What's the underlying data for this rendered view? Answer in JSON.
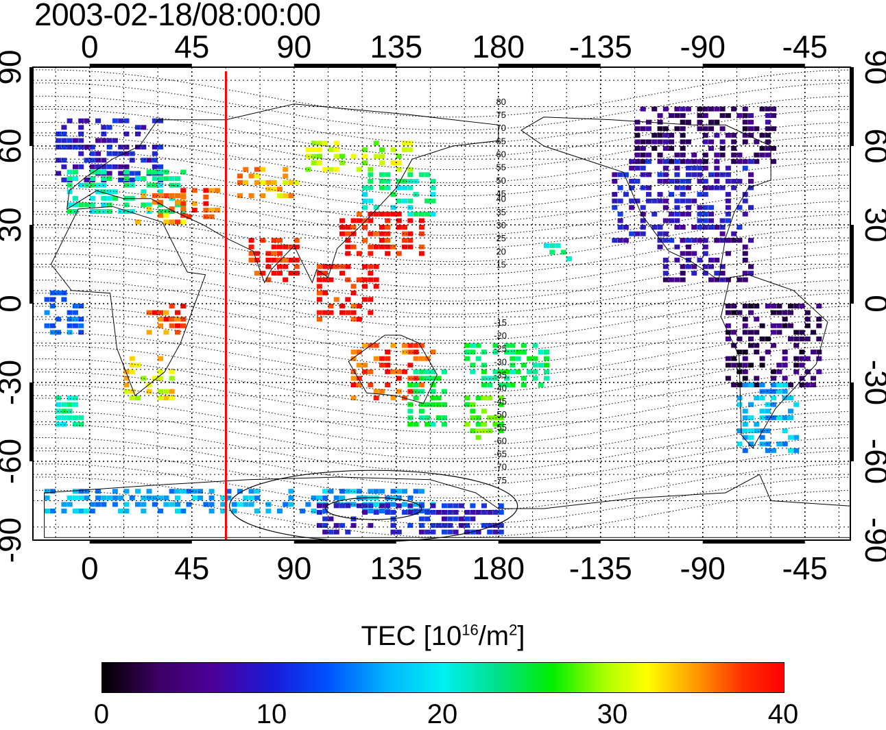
{
  "title": {
    "timestamp": "2003-02-18/08:00:00"
  },
  "axes": {
    "x_tick_labels": [
      "0",
      "45",
      "90",
      "135",
      "180",
      "-135",
      "-90",
      "-45"
    ],
    "y_tick_labels": [
      "90",
      "60",
      "30",
      "0",
      "-30",
      "-60",
      "-90"
    ],
    "y_tick_values": [
      90,
      60,
      30,
      0,
      -30,
      -60,
      -90
    ],
    "longitude_range": [
      -25,
      335
    ],
    "latitude_range": [
      -90,
      90
    ]
  },
  "contour_labels": {
    "north": [
      "80",
      "75",
      "70",
      "65",
      "60",
      "55",
      "50",
      "45",
      "40",
      "35",
      "30",
      "25",
      "20",
      "15"
    ],
    "south": [
      "15",
      "20",
      "25",
      "30",
      "35",
      "40",
      "45",
      "50",
      "55",
      "60",
      "65",
      "70",
      "75"
    ]
  },
  "marker_line": {
    "longitude": 60,
    "color": "#ff0000"
  },
  "colorbar": {
    "title_prefix": "TEC  [10",
    "title_exp1": "16",
    "title_mid": "/m",
    "title_exp2": "2",
    "title_suffix": "]",
    "ticks": [
      "0",
      "10",
      "20",
      "30",
      "40"
    ],
    "range": [
      0,
      40
    ],
    "colors": [
      "#000000",
      "#4b0098",
      "#0050ff",
      "#00f0f0",
      "#00ee00",
      "#ffff00",
      "#ff0000"
    ]
  },
  "tec_regions": [
    {
      "name": "europe-north",
      "lon": [
        -15,
        30
      ],
      "lat": [
        48,
        72
      ],
      "tec": 9
    },
    {
      "name": "europe-south",
      "lon": [
        -10,
        40
      ],
      "lat": [
        36,
        52
      ],
      "tec": 22
    },
    {
      "name": "mediterranean",
      "lon": [
        20,
        40
      ],
      "lat": [
        32,
        42
      ],
      "tec": 36
    },
    {
      "name": "middle-east",
      "lon": [
        40,
        55
      ],
      "lat": [
        34,
        44
      ],
      "tec": 38
    },
    {
      "name": "central-asia",
      "lon": [
        65,
        90
      ],
      "lat": [
        42,
        52
      ],
      "tec": 35
    },
    {
      "name": "russia",
      "lon": [
        95,
        140
      ],
      "lat": [
        52,
        62
      ],
      "tec": 31
    },
    {
      "name": "east-asia-north",
      "lon": [
        120,
        150
      ],
      "lat": [
        35,
        50
      ],
      "tec": 22
    },
    {
      "name": "east-asia-south",
      "lon": [
        110,
        145
      ],
      "lat": [
        20,
        35
      ],
      "tec": 40
    },
    {
      "name": "south-asia",
      "lon": [
        70,
        90
      ],
      "lat": [
        10,
        25
      ],
      "tec": 40
    },
    {
      "name": "southeast-asia",
      "lon": [
        100,
        125
      ],
      "lat": [
        -5,
        15
      ],
      "tec": 40
    },
    {
      "name": "australia-north",
      "lon": [
        115,
        150
      ],
      "lat": [
        -35,
        -15
      ],
      "tec": 38
    },
    {
      "name": "australia-south",
      "lon": [
        140,
        155
      ],
      "lat": [
        -45,
        -25
      ],
      "tec": 24
    },
    {
      "name": "new-zealand",
      "lon": [
        165,
        180
      ],
      "lat": [
        -50,
        -35
      ],
      "tec": 28
    },
    {
      "name": "pacific-islands",
      "lon": [
        165,
        200
      ],
      "lat": [
        -30,
        -15
      ],
      "tec": 24
    },
    {
      "name": "hawaii",
      "lon": [
        200,
        210
      ],
      "lat": [
        18,
        24
      ],
      "tec": 22
    },
    {
      "name": "south-africa",
      "lon": [
        15,
        35
      ],
      "lat": [
        -35,
        -20
      ],
      "tec": 33
    },
    {
      "name": "east-africa",
      "lon": [
        25,
        40
      ],
      "lat": [
        -10,
        0
      ],
      "tec": 38
    },
    {
      "name": "north-america",
      "lon": [
        230,
        290
      ],
      "lat": [
        25,
        55
      ],
      "tec": 9
    },
    {
      "name": "canada",
      "lon": [
        240,
        300
      ],
      "lat": [
        55,
        75
      ],
      "tec": 5
    },
    {
      "name": "central-america",
      "lon": [
        250,
        290
      ],
      "lat": [
        10,
        25
      ],
      "tec": 7
    },
    {
      "name": "south-america-north",
      "lon": [
        280,
        320
      ],
      "lat": [
        -30,
        0
      ],
      "tec": 4
    },
    {
      "name": "south-america-south",
      "lon": [
        285,
        310
      ],
      "lat": [
        -55,
        -30
      ],
      "tec": 17
    },
    {
      "name": "antarctica-coast",
      "lon": [
        -20,
        150
      ],
      "lat": [
        -78,
        -70
      ],
      "tec": 17
    },
    {
      "name": "antarctica-deep",
      "lon": [
        100,
        180
      ],
      "lat": [
        -86,
        -74
      ],
      "tec": 10
    },
    {
      "name": "west-africa",
      "lon": [
        -20,
        -5
      ],
      "lat": [
        -10,
        5
      ],
      "tec": 14
    },
    {
      "name": "south-atlantic",
      "lon": [
        -15,
        -5
      ],
      "lat": [
        -45,
        -35
      ],
      "tec": 22
    }
  ]
}
